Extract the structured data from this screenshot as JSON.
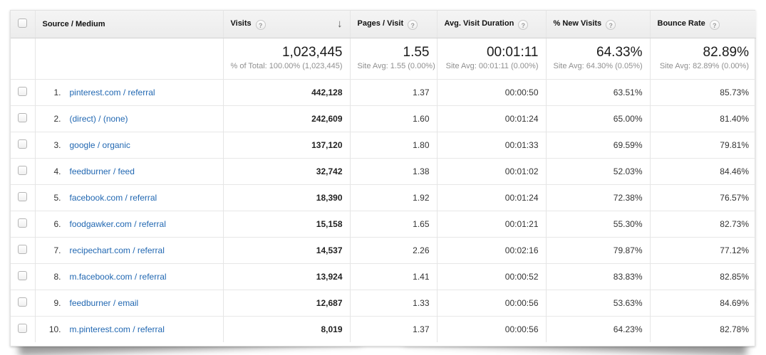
{
  "colors": {
    "link": "#2268b2",
    "header_bg": "#efefef",
    "row_border": "#e7e7e7",
    "summary_sub_text": "#8f8f8f"
  },
  "icons": {
    "help": "?",
    "sort_descending": "↓"
  },
  "table": {
    "columns": {
      "source": "Source / Medium",
      "visits": "Visits",
      "pages": "Pages / Visit",
      "duration": "Avg. Visit Duration",
      "new_visits": "% New Visits",
      "bounce": "Bounce Rate"
    },
    "summary": {
      "visits": "1,023,445",
      "visits_sub": "% of Total: 100.00% (1,023,445)",
      "pages": "1.55",
      "pages_sub": "Site Avg: 1.55 (0.00%)",
      "duration": "00:01:11",
      "duration_sub": "Site Avg: 00:01:11 (0.00%)",
      "new_visits": "64.33%",
      "new_visits_sub": "Site Avg: 64.30% (0.05%)",
      "bounce": "82.89%",
      "bounce_sub": "Site Avg: 82.89% (0.00%)"
    },
    "rows": [
      {
        "rank": "1.",
        "source": "pinterest.com / referral",
        "visits": "442,128",
        "pages": "1.37",
        "duration": "00:00:50",
        "new_visits": "63.51%",
        "bounce": "85.73%"
      },
      {
        "rank": "2.",
        "source": "(direct) / (none)",
        "visits": "242,609",
        "pages": "1.60",
        "duration": "00:01:24",
        "new_visits": "65.00%",
        "bounce": "81.40%"
      },
      {
        "rank": "3.",
        "source": "google / organic",
        "visits": "137,120",
        "pages": "1.80",
        "duration": "00:01:33",
        "new_visits": "69.59%",
        "bounce": "79.81%"
      },
      {
        "rank": "4.",
        "source": "feedburner / feed",
        "visits": "32,742",
        "pages": "1.38",
        "duration": "00:01:02",
        "new_visits": "52.03%",
        "bounce": "84.46%"
      },
      {
        "rank": "5.",
        "source": "facebook.com / referral",
        "visits": "18,390",
        "pages": "1.92",
        "duration": "00:01:24",
        "new_visits": "72.38%",
        "bounce": "76.57%"
      },
      {
        "rank": "6.",
        "source": "foodgawker.com / referral",
        "visits": "15,158",
        "pages": "1.65",
        "duration": "00:01:21",
        "new_visits": "55.30%",
        "bounce": "82.73%"
      },
      {
        "rank": "7.",
        "source": "recipechart.com / referral",
        "visits": "14,537",
        "pages": "2.26",
        "duration": "00:02:16",
        "new_visits": "79.87%",
        "bounce": "77.12%"
      },
      {
        "rank": "8.",
        "source": "m.facebook.com / referral",
        "visits": "13,924",
        "pages": "1.41",
        "duration": "00:00:52",
        "new_visits": "83.83%",
        "bounce": "82.85%"
      },
      {
        "rank": "9.",
        "source": "feedburner / email",
        "visits": "12,687",
        "pages": "1.33",
        "duration": "00:00:56",
        "new_visits": "53.63%",
        "bounce": "84.69%"
      },
      {
        "rank": "10.",
        "source": "m.pinterest.com / referral",
        "visits": "8,019",
        "pages": "1.37",
        "duration": "00:00:56",
        "new_visits": "64.23%",
        "bounce": "82.78%"
      }
    ]
  }
}
